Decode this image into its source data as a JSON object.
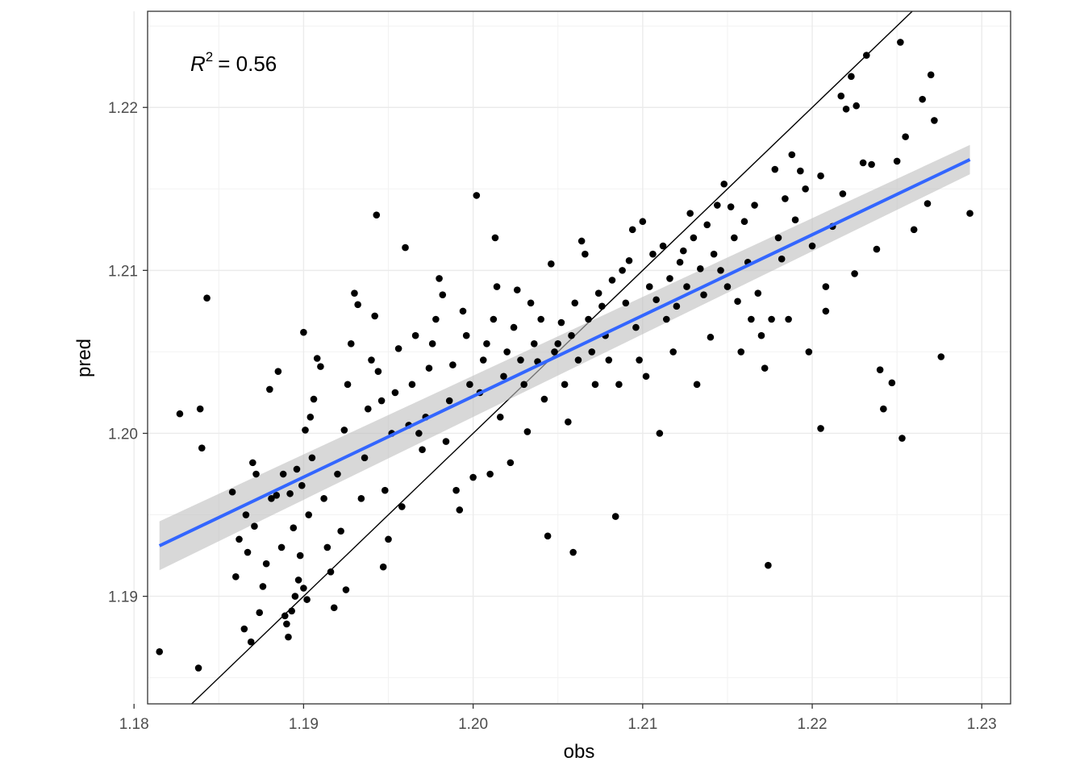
{
  "chart_data": {
    "type": "scatter",
    "title": "",
    "xlabel": "obs",
    "ylabel": "pred",
    "xlim": [
      1.1808,
      1.2317
    ],
    "ylim": [
      1.1834,
      1.2259
    ],
    "xticks": [
      "1.18",
      "1.19",
      "1.20",
      "1.21",
      "1.22",
      "1.23"
    ],
    "xtick_values": [
      1.18,
      1.19,
      1.2,
      1.21,
      1.22,
      1.23
    ],
    "yticks": [
      "1.19",
      "1.20",
      "1.21",
      "1.22"
    ],
    "ytick_values": [
      1.19,
      1.2,
      1.21,
      1.22
    ],
    "grid": true,
    "legend": "none",
    "annotation": {
      "r_symbol": "R",
      "r_exponent": "2",
      "r_value": "= 0.56"
    },
    "identity_line": {
      "slope": 1,
      "intercept": 0,
      "color": "#000000"
    },
    "fit_line": {
      "x": [
        1.1815,
        1.2293
      ],
      "y": [
        1.1931,
        1.2168
      ],
      "ci_upper": [
        1.1946,
        1.2177
      ],
      "ci_lower": [
        1.1916,
        1.2159
      ],
      "color": "#3366ff",
      "ci_color": "#bebebe"
    },
    "point_color": "#000000",
    "points": [
      [
        1.1815,
        1.1866
      ],
      [
        1.1838,
        1.1856
      ],
      [
        1.1827,
        1.2012
      ],
      [
        1.1839,
        1.2015
      ],
      [
        1.184,
        1.1991
      ],
      [
        1.1843,
        1.2083
      ],
      [
        1.1858,
        1.1964
      ],
      [
        1.1862,
        1.1935
      ],
      [
        1.186,
        1.1912
      ],
      [
        1.1866,
        1.195
      ],
      [
        1.187,
        1.1982
      ],
      [
        1.1872,
        1.1975
      ],
      [
        1.1874,
        1.189
      ],
      [
        1.1876,
        1.1906
      ],
      [
        1.1867,
        1.1927
      ],
      [
        1.1871,
        1.1943
      ],
      [
        1.1865,
        1.188
      ],
      [
        1.1869,
        1.1872
      ],
      [
        1.1878,
        1.192
      ],
      [
        1.1881,
        1.196
      ],
      [
        1.188,
        1.2027
      ],
      [
        1.1885,
        1.2038
      ],
      [
        1.1888,
        1.1975
      ],
      [
        1.1884,
        1.1962
      ],
      [
        1.1887,
        1.193
      ],
      [
        1.1889,
        1.1888
      ],
      [
        1.1891,
        1.1875
      ],
      [
        1.189,
        1.1883
      ],
      [
        1.1893,
        1.1891
      ],
      [
        1.1895,
        1.19
      ],
      [
        1.1897,
        1.191
      ],
      [
        1.1892,
        1.1963
      ],
      [
        1.1896,
        1.1978
      ],
      [
        1.1899,
        1.1968
      ],
      [
        1.1894,
        1.1942
      ],
      [
        1.1898,
        1.1925
      ],
      [
        1.19,
        1.1905
      ],
      [
        1.1902,
        1.1898
      ],
      [
        1.1903,
        1.195
      ],
      [
        1.1905,
        1.1985
      ],
      [
        1.1901,
        1.2002
      ],
      [
        1.1904,
        1.201
      ],
      [
        1.1906,
        1.2021
      ],
      [
        1.1908,
        1.2046
      ],
      [
        1.191,
        1.2041
      ],
      [
        1.19,
        1.2062
      ],
      [
        1.1912,
        1.196
      ],
      [
        1.1914,
        1.193
      ],
      [
        1.1916,
        1.1915
      ],
      [
        1.1918,
        1.1893
      ],
      [
        1.192,
        1.1975
      ],
      [
        1.1922,
        1.194
      ],
      [
        1.1924,
        1.2002
      ],
      [
        1.1926,
        1.203
      ],
      [
        1.1928,
        1.2055
      ],
      [
        1.193,
        1.2086
      ],
      [
        1.1932,
        1.2079
      ],
      [
        1.1925,
        1.1904
      ],
      [
        1.1934,
        1.196
      ],
      [
        1.1936,
        1.1985
      ],
      [
        1.1938,
        1.2015
      ],
      [
        1.194,
        1.2045
      ],
      [
        1.1942,
        1.2072
      ],
      [
        1.1944,
        1.2038
      ],
      [
        1.1946,
        1.202
      ],
      [
        1.1948,
        1.1965
      ],
      [
        1.195,
        1.1935
      ],
      [
        1.1943,
        1.2134
      ],
      [
        1.1947,
        1.1918
      ],
      [
        1.1952,
        1.2
      ],
      [
        1.1954,
        1.2025
      ],
      [
        1.1956,
        1.2052
      ],
      [
        1.1958,
        1.1955
      ],
      [
        1.196,
        1.2114
      ],
      [
        1.1962,
        1.2005
      ],
      [
        1.1964,
        1.203
      ],
      [
        1.1966,
        1.206
      ],
      [
        1.1968,
        1.2
      ],
      [
        1.197,
        1.199
      ],
      [
        1.1972,
        1.201
      ],
      [
        1.1974,
        1.204
      ],
      [
        1.1976,
        1.2055
      ],
      [
        1.1978,
        1.207
      ],
      [
        1.198,
        1.2095
      ],
      [
        1.1982,
        1.2085
      ],
      [
        1.1984,
        1.1995
      ],
      [
        1.1986,
        1.202
      ],
      [
        1.1988,
        1.2042
      ],
      [
        1.199,
        1.1965
      ],
      [
        1.1992,
        1.1953
      ],
      [
        1.1994,
        1.2075
      ],
      [
        1.1996,
        1.206
      ],
      [
        1.1998,
        1.203
      ],
      [
        1.2,
        1.1973
      ],
      [
        1.2002,
        1.2146
      ],
      [
        1.2004,
        1.2025
      ],
      [
        1.2006,
        1.2045
      ],
      [
        1.2008,
        1.2055
      ],
      [
        1.201,
        1.1975
      ],
      [
        1.2012,
        1.207
      ],
      [
        1.2014,
        1.209
      ],
      [
        1.2013,
        1.212
      ],
      [
        1.2016,
        1.201
      ],
      [
        1.2018,
        1.2035
      ],
      [
        1.202,
        1.205
      ],
      [
        1.2022,
        1.1982
      ],
      [
        1.2024,
        1.2065
      ],
      [
        1.2026,
        1.2088
      ],
      [
        1.2028,
        1.2045
      ],
      [
        1.203,
        1.203
      ],
      [
        1.2032,
        1.2001
      ],
      [
        1.2034,
        1.208
      ],
      [
        1.2036,
        1.2055
      ],
      [
        1.2038,
        1.2044
      ],
      [
        1.204,
        1.207
      ],
      [
        1.2042,
        1.2021
      ],
      [
        1.2044,
        1.1937
      ],
      [
        1.2046,
        1.2104
      ],
      [
        1.2048,
        1.205
      ],
      [
        1.205,
        1.2055
      ],
      [
        1.2052,
        1.2068
      ],
      [
        1.2054,
        1.203
      ],
      [
        1.2056,
        1.2007
      ],
      [
        1.2058,
        1.206
      ],
      [
        1.2059,
        1.1927
      ],
      [
        1.206,
        1.208
      ],
      [
        1.2062,
        1.2045
      ],
      [
        1.2064,
        1.2118
      ],
      [
        1.2066,
        1.211
      ],
      [
        1.2068,
        1.207
      ],
      [
        1.207,
        1.205
      ],
      [
        1.2072,
        1.203
      ],
      [
        1.2074,
        1.2086
      ],
      [
        1.2076,
        1.2078
      ],
      [
        1.2078,
        1.206
      ],
      [
        1.208,
        1.2045
      ],
      [
        1.2082,
        1.2094
      ],
      [
        1.2084,
        1.1949
      ],
      [
        1.2086,
        1.203
      ],
      [
        1.2088,
        1.21
      ],
      [
        1.209,
        1.208
      ],
      [
        1.2092,
        1.2106
      ],
      [
        1.2094,
        1.2125
      ],
      [
        1.2096,
        1.2065
      ],
      [
        1.2098,
        1.2045
      ],
      [
        1.21,
        1.213
      ],
      [
        1.2102,
        1.2035
      ],
      [
        1.2104,
        1.209
      ],
      [
        1.2106,
        1.211
      ],
      [
        1.2108,
        1.2082
      ],
      [
        1.211,
        1.2
      ],
      [
        1.2112,
        1.2115
      ],
      [
        1.2114,
        1.207
      ],
      [
        1.2116,
        1.2095
      ],
      [
        1.2118,
        1.205
      ],
      [
        1.212,
        1.2078
      ],
      [
        1.2122,
        1.2105
      ],
      [
        1.2124,
        1.2112
      ],
      [
        1.2126,
        1.209
      ],
      [
        1.2128,
        1.2135
      ],
      [
        1.213,
        1.212
      ],
      [
        1.2132,
        1.203
      ],
      [
        1.2134,
        1.2101
      ],
      [
        1.2136,
        1.2085
      ],
      [
        1.2138,
        1.2128
      ],
      [
        1.214,
        1.2059
      ],
      [
        1.2142,
        1.211
      ],
      [
        1.2144,
        1.214
      ],
      [
        1.2146,
        1.21
      ],
      [
        1.2148,
        1.2153
      ],
      [
        1.215,
        1.209
      ],
      [
        1.2152,
        1.2139
      ],
      [
        1.2154,
        1.212
      ],
      [
        1.2156,
        1.2081
      ],
      [
        1.2158,
        1.205
      ],
      [
        1.216,
        1.213
      ],
      [
        1.2162,
        1.2105
      ],
      [
        1.2164,
        1.207
      ],
      [
        1.2166,
        1.214
      ],
      [
        1.2168,
        1.2086
      ],
      [
        1.217,
        1.206
      ],
      [
        1.2172,
        1.204
      ],
      [
        1.2174,
        1.1919
      ],
      [
        1.2176,
        1.207
      ],
      [
        1.2178,
        1.2162
      ],
      [
        1.218,
        1.212
      ],
      [
        1.2182,
        1.2107
      ],
      [
        1.2184,
        1.2144
      ],
      [
        1.2186,
        1.207
      ],
      [
        1.2188,
        1.2171
      ],
      [
        1.219,
        1.2131
      ],
      [
        1.2193,
        1.2161
      ],
      [
        1.2196,
        1.215
      ],
      [
        1.2198,
        1.205
      ],
      [
        1.22,
        1.2115
      ],
      [
        1.2205,
        1.2158
      ],
      [
        1.2208,
        1.2075
      ],
      [
        1.2212,
        1.2127
      ],
      [
        1.2205,
        1.2003
      ],
      [
        1.2208,
        1.209
      ],
      [
        1.2217,
        1.2207
      ],
      [
        1.222,
        1.2199
      ],
      [
        1.2218,
        1.2147
      ],
      [
        1.2223,
        1.2219
      ],
      [
        1.2225,
        1.2098
      ],
      [
        1.2226,
        1.2201
      ],
      [
        1.223,
        1.2166
      ],
      [
        1.2232,
        1.2232
      ],
      [
        1.2235,
        1.2165
      ],
      [
        1.2238,
        1.2113
      ],
      [
        1.224,
        1.2039
      ],
      [
        1.2242,
        1.2015
      ],
      [
        1.2247,
        1.2031
      ],
      [
        1.225,
        1.2167
      ],
      [
        1.2252,
        1.224
      ],
      [
        1.2253,
        1.1997
      ],
      [
        1.2255,
        1.2182
      ],
      [
        1.226,
        1.2125
      ],
      [
        1.2265,
        1.2205
      ],
      [
        1.2268,
        1.2141
      ],
      [
        1.227,
        1.222
      ],
      [
        1.2272,
        1.2192
      ],
      [
        1.2276,
        1.2047
      ],
      [
        1.2293,
        1.2135
      ]
    ]
  }
}
